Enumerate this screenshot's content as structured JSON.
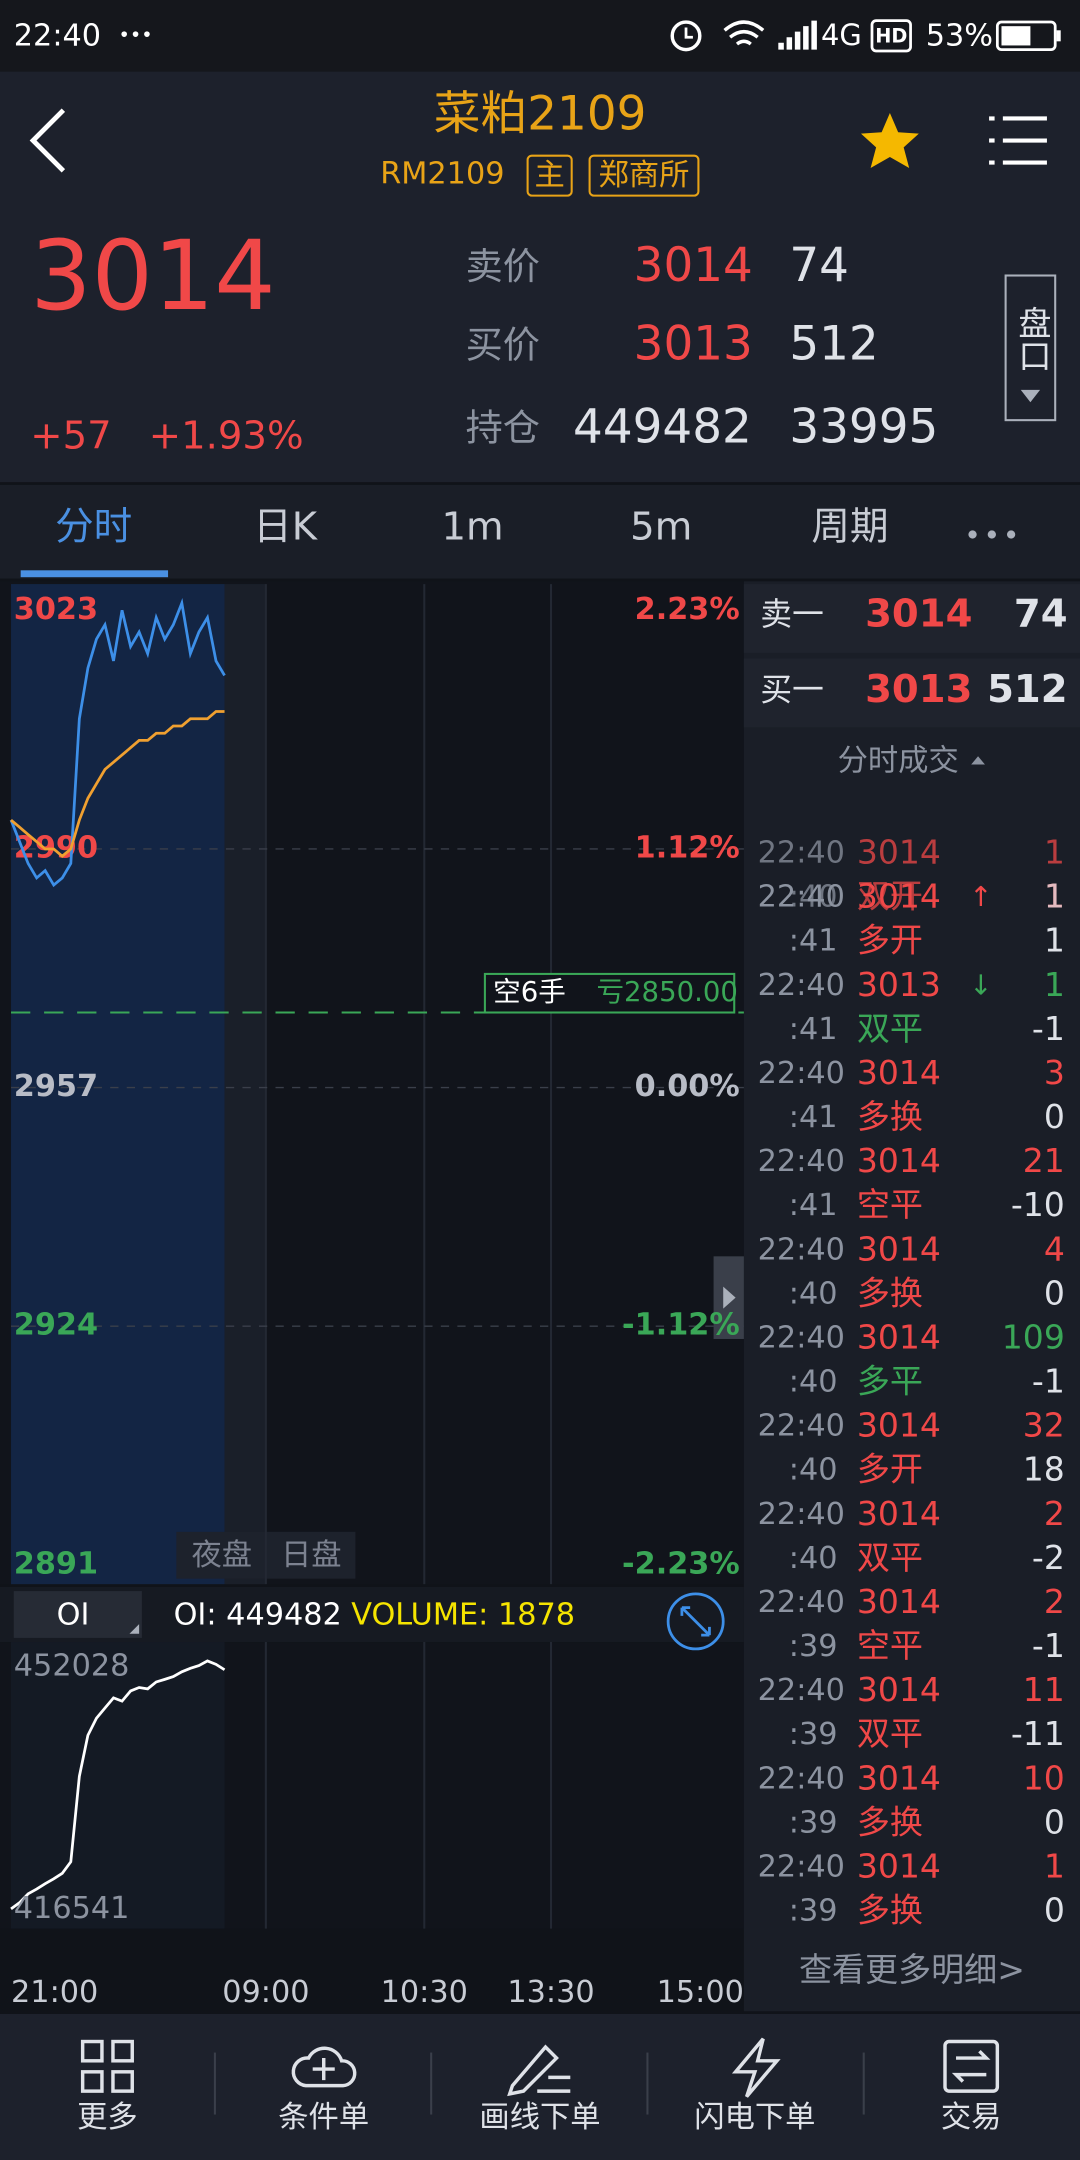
{
  "status": {
    "time": "22:40",
    "dots": "•••",
    "network": "4G",
    "hd": "HD",
    "battery": "53%"
  },
  "header": {
    "title": "菜粕2109",
    "code": "RM2109",
    "tags": [
      "主",
      "郑商所"
    ]
  },
  "quote": {
    "last": "3014",
    "change": "+57",
    "change_pct": "+1.93%",
    "rows": [
      {
        "label": "卖价",
        "price": "3014",
        "qty": "74",
        "price_color": "#f04848"
      },
      {
        "label": "买价",
        "price": "3013",
        "qty": "512",
        "price_color": "#f04848"
      },
      {
        "label": "持仓",
        "price": "449482",
        "qty": "33995",
        "price_color": "#dfe2e8"
      }
    ],
    "button": "盘口"
  },
  "tabs": [
    "分时",
    "日K",
    "1m",
    "5m",
    "周期"
  ],
  "chart": {
    "price_labels": [
      3023,
      2990,
      2957,
      2924,
      2891
    ],
    "pct_labels": [
      "2.23%",
      "1.12%",
      "0.00%",
      "-1.12%",
      "-2.23%"
    ],
    "label_colors": [
      "#f04848",
      "#f04848",
      "#b8bcc6",
      "#3aa757",
      "#3aa757"
    ],
    "position": {
      "label": "空6手",
      "pnl": "亏2850.00"
    },
    "sessions": [
      "夜盘",
      "日盘"
    ],
    "price_color": "#3d8fe8",
    "average_color": "#f0a030",
    "price": [
      2994,
      2991,
      2988,
      2986,
      2987,
      2985,
      2986,
      2988,
      3008,
      3015,
      3019,
      3021,
      3016,
      3023,
      3018,
      3020,
      3017,
      3022,
      3019,
      3021,
      3024,
      3017,
      3020,
      3022,
      3016,
      3014
    ],
    "average": [
      2994,
      2993,
      2992,
      2991,
      2990,
      2990,
      2989,
      2990,
      2994,
      2997,
      2999,
      3001,
      3002,
      3003,
      3004,
      3005,
      3005,
      3006,
      3006,
      3007,
      3007,
      3008,
      3008,
      3008,
      3009,
      3009
    ]
  },
  "oi": {
    "selector": "OI",
    "oi_text": "OI: 449482",
    "volume_text": "VOLUME: 1878",
    "labels": [
      452028,
      416541
    ],
    "color": "#ffffff",
    "values": [
      416600,
      417500,
      418800,
      419500,
      420300,
      421000,
      421800,
      423500,
      436000,
      442000,
      444500,
      446000,
      447500,
      447000,
      448500,
      449000,
      448800,
      449800,
      450200,
      450600,
      451300,
      451800,
      452200,
      452900,
      452400,
      451600
    ]
  },
  "time_axis": [
    "21:00",
    "09:00",
    "10:30",
    "13:30",
    "15:00"
  ],
  "book": {
    "rows": [
      {
        "label": "卖一",
        "price": "3014",
        "qty": "74"
      },
      {
        "label": "买一",
        "price": "3013",
        "qty": "512"
      }
    ],
    "title": "分时成交"
  },
  "trades": {
    "incoming": {
      "time": "22:40",
      "price": "3014",
      "qty": "1",
      "minute": ":40",
      "kind": "双开",
      "change": "1",
      "qty_color": "#f04848",
      "kind_color": "#f04848"
    },
    "list": [
      {
        "time": "22:40",
        "price": "3014",
        "arrow": "↑",
        "arrow_color": "#f04848",
        "qty": "1",
        "minute": ":41",
        "kind": "多开",
        "change": "1",
        "qty_color": "#f04848",
        "kind_color": "#f04848"
      },
      {
        "time": "22:40",
        "price": "3013",
        "arrow": "↓",
        "arrow_color": "#3aa757",
        "qty": "1",
        "minute": ":41",
        "kind": "双平",
        "change": "-1",
        "qty_color": "#3aa757",
        "kind_color": "#3aa757"
      },
      {
        "time": "22:40",
        "price": "3014",
        "qty": "3",
        "minute": ":41",
        "kind": "多换",
        "change": "0",
        "qty_color": "#f04848",
        "kind_color": "#f04848"
      },
      {
        "time": "22:40",
        "price": "3014",
        "qty": "21",
        "minute": ":41",
        "kind": "空平",
        "change": "-10",
        "qty_color": "#f04848",
        "kind_color": "#f04848"
      },
      {
        "time": "22:40",
        "price": "3014",
        "qty": "4",
        "minute": ":40",
        "kind": "多换",
        "change": "0",
        "qty_color": "#f04848",
        "kind_color": "#f04848"
      },
      {
        "time": "22:40",
        "price": "3014",
        "qty": "109",
        "minute": ":40",
        "kind": "多平",
        "change": "-1",
        "qty_color": "#3aa757",
        "kind_color": "#3aa757"
      },
      {
        "time": "22:40",
        "price": "3014",
        "qty": "32",
        "minute": ":40",
        "kind": "多开",
        "change": "18",
        "qty_color": "#f04848",
        "kind_color": "#f04848"
      },
      {
        "time": "22:40",
        "price": "3014",
        "qty": "2",
        "minute": ":40",
        "kind": "双平",
        "change": "-2",
        "qty_color": "#f04848",
        "kind_color": "#f04848"
      },
      {
        "time": "22:40",
        "price": "3014",
        "qty": "2",
        "minute": ":39",
        "kind": "空平",
        "change": "-1",
        "qty_color": "#f04848",
        "kind_color": "#f04848"
      },
      {
        "time": "22:40",
        "price": "3014",
        "qty": "11",
        "minute": ":39",
        "kind": "双平",
        "change": "-11",
        "qty_color": "#f04848",
        "kind_color": "#f04848"
      },
      {
        "time": "22:40",
        "price": "3014",
        "qty": "10",
        "minute": ":39",
        "kind": "多换",
        "change": "0",
        "qty_color": "#f04848",
        "kind_color": "#f04848"
      },
      {
        "time": "22:40",
        "price": "3014",
        "qty": "1",
        "minute": ":39",
        "kind": "多换",
        "change": "0",
        "qty_color": "#f04848",
        "kind_color": "#f04848"
      }
    ],
    "more": "查看更多明细>"
  },
  "nav": [
    "更多",
    "条件单",
    "画线下单",
    "闪电下单",
    "交易"
  ]
}
